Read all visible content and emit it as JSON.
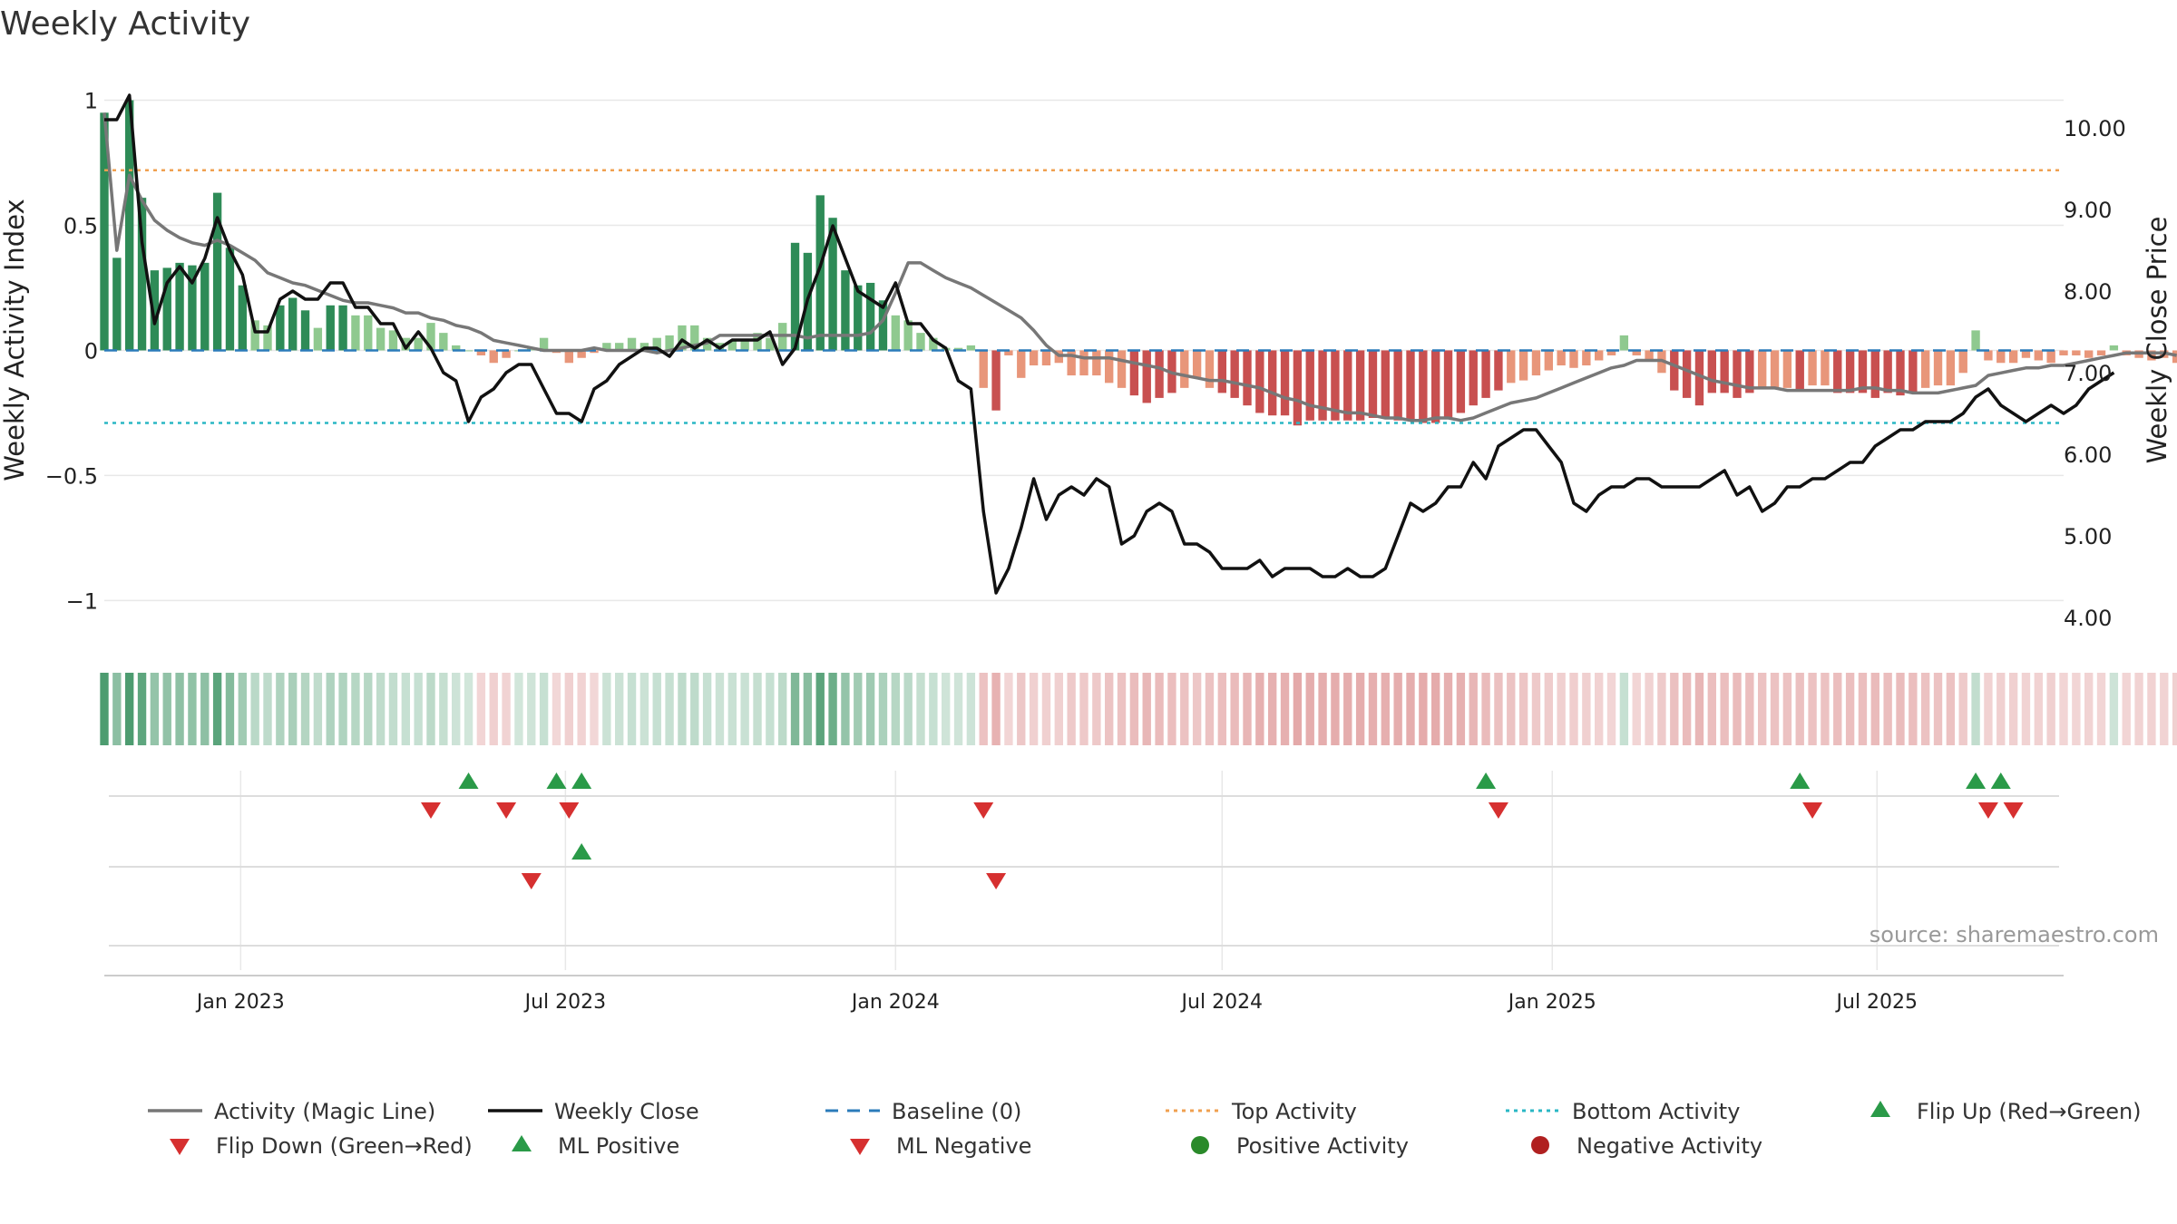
{
  "chart_data": {
    "type": "bar",
    "title": "Weekly Activity",
    "ylabel": "Weekly Activity Index",
    "y2label": "Weekly Close Price",
    "source": "source: sharemaestro.com",
    "ylim": [
      -1.1,
      1.02
    ],
    "y2lim": [
      3.9,
      10.4
    ],
    "yticks": [
      {
        "v": 1,
        "label": "1"
      },
      {
        "v": 0.5,
        "label": "0.5"
      },
      {
        "v": 0,
        "label": "0"
      },
      {
        "v": -0.5,
        "label": "−0.5"
      },
      {
        "v": -1,
        "label": "−1"
      }
    ],
    "y2ticks": [
      {
        "v": 10,
        "label": "10.00"
      },
      {
        "v": 9,
        "label": "9.00"
      },
      {
        "v": 8,
        "label": "8.00"
      },
      {
        "v": 7,
        "label": "7.00"
      },
      {
        "v": 6,
        "label": "6.00"
      },
      {
        "v": 5,
        "label": "5.00"
      },
      {
        "v": 4,
        "label": "4.00"
      }
    ],
    "x_range": [
      "2022-10-17",
      "2025-10-13"
    ],
    "xticks": [
      {
        "date": "2023-01-01",
        "label": "Jan 2023"
      },
      {
        "date": "2023-07-01",
        "label": "Jul 2023"
      },
      {
        "date": "2024-01-01",
        "label": "Jan 2024"
      },
      {
        "date": "2024-07-01",
        "label": "Jul 2024"
      },
      {
        "date": "2025-01-01",
        "label": "Jan 2025"
      },
      {
        "date": "2025-07-01",
        "label": "Jul 2025"
      }
    ],
    "top_activity": 0.72,
    "bottom_activity": -0.29,
    "baseline": 0,
    "weeks": [
      {
        "start": "2022-10-17",
        "activity": [
          0.95,
          0.37,
          1.0,
          0.61,
          0.32,
          0.33,
          0.35,
          0.34,
          0.35,
          0.63,
          0.41,
          0.26,
          0.12,
          0.1,
          0.18,
          0.21,
          0.16,
          0.09,
          0.18,
          0.18,
          0.14,
          0.14,
          0.09,
          0.08,
          0.05,
          0.05,
          0.11,
          0.07,
          0.02,
          0.0,
          -0.02,
          -0.05,
          -0.03,
          0.0,
          0.01,
          0.05,
          -0.01,
          -0.05,
          -0.03,
          -0.01,
          0.03,
          0.03,
          0.05,
          0.03,
          0.05,
          0.06,
          0.1,
          0.1,
          0.05,
          0.03,
          0.04,
          0.04,
          0.07,
          0.05,
          0.11,
          0.43,
          0.39,
          0.62,
          0.53,
          0.32,
          0.26,
          0.27,
          0.2,
          0.14,
          0.12,
          0.07,
          0.05,
          0.01,
          0.01,
          0.02,
          -0.15,
          -0.24,
          -0.02,
          -0.11,
          -0.06,
          -0.06,
          -0.05,
          -0.1,
          -0.1,
          -0.1,
          -0.13,
          -0.15,
          -0.18,
          -0.21,
          -0.19,
          -0.17,
          -0.15,
          -0.11,
          -0.15,
          -0.17,
          -0.19,
          -0.22,
          -0.25,
          -0.26,
          -0.26,
          -0.3,
          -0.28,
          -0.28,
          -0.28,
          -0.28,
          -0.28,
          -0.27,
          -0.27,
          -0.28,
          -0.28,
          -0.29,
          -0.29,
          -0.27,
          -0.25,
          -0.22,
          -0.19,
          -0.16,
          -0.13,
          -0.12,
          -0.1,
          -0.08,
          -0.06,
          -0.07,
          -0.06,
          -0.04,
          -0.02,
          0.06,
          -0.02,
          -0.04,
          -0.09,
          -0.16,
          -0.19,
          -0.22,
          -0.17,
          -0.17,
          -0.19,
          -0.17,
          -0.15,
          -0.15,
          -0.15,
          -0.16,
          -0.14,
          -0.14,
          -0.17,
          -0.17,
          -0.17,
          -0.19,
          -0.17,
          -0.18,
          -0.17,
          -0.15,
          -0.14,
          -0.14,
          -0.09,
          0.08,
          -0.04,
          -0.05,
          -0.05,
          -0.03,
          -0.04,
          -0.05,
          -0.02,
          -0.02,
          -0.03,
          -0.02,
          0.02,
          -0.02,
          -0.03,
          -0.04,
          -0.03,
          -0.05
        ],
        "magic": [
          0.95,
          0.4,
          0.7,
          0.6,
          0.52,
          0.48,
          0.45,
          0.43,
          0.42,
          0.44,
          0.42,
          0.39,
          0.36,
          0.31,
          0.29,
          0.27,
          0.26,
          0.24,
          0.22,
          0.2,
          0.19,
          0.19,
          0.18,
          0.17,
          0.15,
          0.15,
          0.13,
          0.12,
          0.1,
          0.09,
          0.07,
          0.04,
          0.03,
          0.02,
          0.01,
          0.0,
          0.0,
          0.0,
          0.0,
          0.01,
          0.0,
          0.0,
          0.0,
          0.0,
          -0.01,
          0.0,
          0.01,
          0.02,
          0.03,
          0.06,
          0.06,
          0.06,
          0.06,
          0.06,
          0.06,
          0.06,
          0.05,
          0.06,
          0.06,
          0.06,
          0.06,
          0.07,
          0.12,
          0.23,
          0.35,
          0.35,
          0.32,
          0.29,
          0.27,
          0.25,
          0.22,
          0.19,
          0.16,
          0.13,
          0.08,
          0.02,
          -0.02,
          -0.02,
          -0.03,
          -0.03,
          -0.03,
          -0.04,
          -0.05,
          -0.06,
          -0.07,
          -0.09,
          -0.1,
          -0.11,
          -0.12,
          -0.12,
          -0.13,
          -0.14,
          -0.15,
          -0.17,
          -0.19,
          -0.2,
          -0.22,
          -0.23,
          -0.24,
          -0.25,
          -0.25,
          -0.26,
          -0.27,
          -0.27,
          -0.28,
          -0.28,
          -0.27,
          -0.27,
          -0.28,
          -0.27,
          -0.25,
          -0.23,
          -0.21,
          -0.2,
          -0.19,
          -0.17,
          -0.15,
          -0.13,
          -0.11,
          -0.09,
          -0.07,
          -0.06,
          -0.04,
          -0.04,
          -0.04,
          -0.06,
          -0.08,
          -0.1,
          -0.12,
          -0.13,
          -0.14,
          -0.15,
          -0.15,
          -0.15,
          -0.16,
          -0.16,
          -0.16,
          -0.16,
          -0.16,
          -0.16,
          -0.15,
          -0.15,
          -0.16,
          -0.16,
          -0.17,
          -0.17,
          -0.17,
          -0.16,
          -0.15,
          -0.14,
          -0.1,
          -0.09,
          -0.08,
          -0.07,
          -0.07,
          -0.06,
          -0.06,
          -0.05,
          -0.04,
          -0.03,
          -0.02,
          -0.01,
          -0.01,
          -0.01,
          -0.01,
          -0.02,
          -0.02
        ],
        "close": [
          10.1,
          10.1,
          10.4,
          8.6,
          7.6,
          8.1,
          8.3,
          8.1,
          8.4,
          8.9,
          8.5,
          8.2,
          7.5,
          7.5,
          7.9,
          8.0,
          7.9,
          7.9,
          8.1,
          8.1,
          7.8,
          7.8,
          7.6,
          7.6,
          7.3,
          7.5,
          7.3,
          7.0,
          6.9,
          6.4,
          6.7,
          6.8,
          7.0,
          7.1,
          7.1,
          6.8,
          6.5,
          6.5,
          6.4,
          6.8,
          6.9,
          7.1,
          7.2,
          7.3,
          7.3,
          7.2,
          7.4,
          7.3,
          7.4,
          7.3,
          7.4,
          7.4,
          7.4,
          7.5,
          7.1,
          7.3,
          7.9,
          8.3,
          8.8,
          8.4,
          8.0,
          7.9,
          7.8,
          8.1,
          7.6,
          7.6,
          7.4,
          7.3,
          6.9,
          6.8,
          5.3,
          4.3,
          4.6,
          5.1,
          5.7,
          5.2,
          5.5,
          5.6,
          5.5,
          5.7,
          5.6,
          4.9,
          5.0,
          5.3,
          5.4,
          5.3,
          4.9,
          4.9,
          4.8,
          4.6,
          4.6,
          4.6,
          4.7,
          4.5,
          4.6,
          4.6,
          4.6,
          4.5,
          4.5,
          4.6,
          4.5,
          4.5,
          4.6,
          5.0,
          5.4,
          5.3,
          5.4,
          5.6,
          5.6,
          5.9,
          5.7,
          6.1,
          6.2,
          6.3,
          6.3,
          6.1,
          5.9,
          5.4,
          5.3,
          5.5,
          5.6,
          5.6,
          5.7,
          5.7,
          5.6,
          5.6,
          5.6,
          5.6,
          5.7,
          5.8,
          5.5,
          5.6,
          5.3,
          5.4,
          5.6,
          5.6,
          5.7,
          5.7,
          5.8,
          5.9,
          5.9,
          6.1,
          6.2,
          6.3,
          6.3,
          6.4,
          6.4,
          6.4,
          6.5,
          6.7,
          6.8,
          6.6,
          6.5,
          6.4,
          6.5,
          6.6,
          6.5,
          6.6,
          6.8,
          6.9,
          7.0
        ]
      }
    ],
    "flip_up": [
      "2023-05-08",
      "2023-06-26",
      "2023-07-10",
      "2024-11-25",
      "2025-05-19",
      "2025-08-25",
      "2025-09-08"
    ],
    "flip_down": [
      "2023-04-17",
      "2023-05-29",
      "2023-07-03",
      "2024-02-19",
      "2024-12-02",
      "2025-05-26",
      "2025-09-01",
      "2025-09-15"
    ],
    "ml_positive": [
      "2023-07-10"
    ],
    "ml_negative": [
      "2023-06-12",
      "2024-02-26"
    ],
    "legend": [
      {
        "label": "Activity (Magic Line)",
        "kind": "line",
        "color": "#777777"
      },
      {
        "label": "Weekly Close",
        "kind": "line",
        "color": "#111111"
      },
      {
        "label": "Baseline (0)",
        "kind": "dash",
        "color": "#2b7bba"
      },
      {
        "label": "Top Activity",
        "kind": "dot",
        "color": "#f0a050"
      },
      {
        "label": "Bottom Activity",
        "kind": "dot",
        "color": "#2ab7c4"
      },
      {
        "label": "Flip Up (Red→Green)",
        "kind": "tri-up",
        "color": "#2a9a48"
      },
      {
        "label": "Flip Down (Green→Red)",
        "kind": "tri-down",
        "color": "#d63030"
      },
      {
        "label": "ML Positive",
        "kind": "tri-up",
        "color": "#2a9a48"
      },
      {
        "label": "ML Negative",
        "kind": "tri-down",
        "color": "#d63030"
      },
      {
        "label": "Positive Activity",
        "kind": "circle",
        "color": "#2a8a2a"
      },
      {
        "label": "Negative Activity",
        "kind": "circle",
        "color": "#b02020"
      }
    ],
    "colors": {
      "pos_dark": "#2e8b57",
      "pos_light": "#8fc98f",
      "neg_dark": "#c85050",
      "neg_light": "#e8967a",
      "magic": "#777777",
      "close": "#111111",
      "baseline": "#2b7bba",
      "top": "#f0a050",
      "bottom": "#2ab7c4",
      "up": "#2a9a48",
      "down": "#d63030",
      "grid": "#e8e8e8"
    }
  }
}
